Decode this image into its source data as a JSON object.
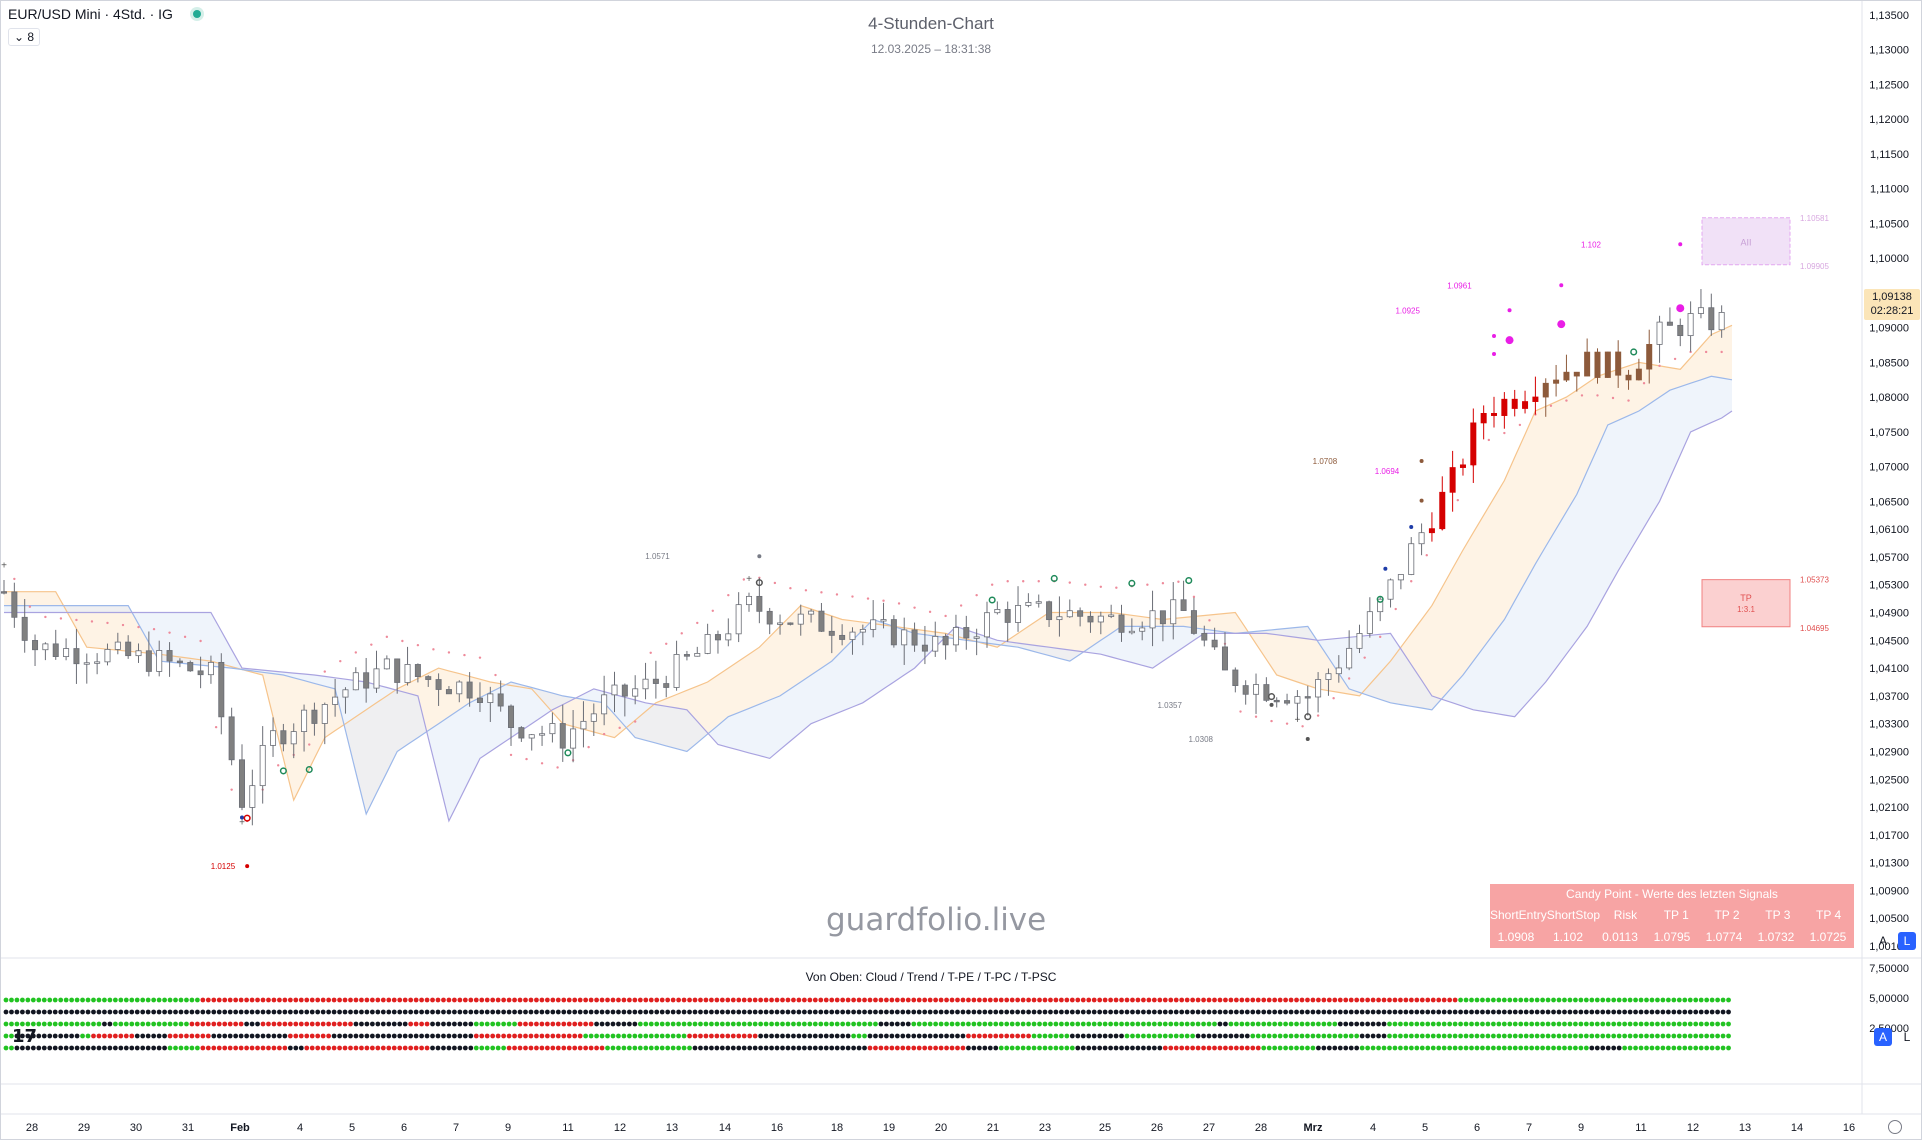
{
  "header": {
    "symbol": "EUR/USD Mini · 4Std. · IG",
    "indicator_count": "8",
    "title": "4-Stunden-Chart",
    "datetime": "12.03.2025 – 18:31:38"
  },
  "price_tag": {
    "price": "1,09138",
    "countdown": "02:28:21"
  },
  "watermark": "guardfolio.live",
  "lower_pane_title": "Von Oben: Cloud / Trend / T-PE / T-PC / T-PSC",
  "buttons": {
    "a": "A",
    "l": "L"
  },
  "signal_table": {
    "title": "Candy Point - Werte des letzten Signals",
    "headers": [
      "ShortEntry",
      "ShortStop",
      "Risk",
      "TP 1",
      "TP 2",
      "TP 3",
      "TP 4"
    ],
    "values": [
      "1.0908",
      "1.102",
      "0.0113",
      "1.0795",
      "1.0774",
      "1.0732",
      "1.0725"
    ]
  },
  "colors": {
    "up": "#ffffff",
    "down": "#808080",
    "red_candle": "#d50000",
    "brown_candle": "#8d5a3b",
    "magenta": "#e91ee6",
    "green_dot": "#22c322",
    "red_dot": "#e02020",
    "black_dot": "#131722"
  },
  "chart_data": {
    "type": "candlestick",
    "y_axis_ticks": [
      "1,13500",
      "1,13000",
      "1,12500",
      "1,12000",
      "1,11500",
      "1,11000",
      "1,10500",
      "1,10000",
      "1,09500",
      "1,09000",
      "1,08500",
      "1,08000",
      "1,07500",
      "1,07000",
      "1,06500",
      "1,06100",
      "1,05700",
      "1,05300",
      "1,04900",
      "1,04500",
      "1,04100",
      "1,03700",
      "1,03300",
      "1,02900",
      "1,02500",
      "1,02100",
      "1,01700",
      "1,01300",
      "1,00900",
      "1,00500",
      "1,00100"
    ],
    "lower_axis_ticks": [
      "7,50000",
      "5,00000",
      "2,50000"
    ],
    "x_axis_ticks": [
      "28",
      "29",
      "30",
      "31",
      "Feb",
      "4",
      "5",
      "6",
      "7",
      "9",
      "11",
      "12",
      "13",
      "14",
      "16",
      "18",
      "19",
      "20",
      "21",
      "23",
      "25",
      "26",
      "27",
      "28",
      "Mrz",
      "4",
      "5",
      "6",
      "7",
      "9",
      "11",
      "12",
      "13",
      "14",
      "16"
    ],
    "ylim": [
      0.998,
      1.137
    ],
    "x_range": [
      0,
      334
    ],
    "level_labels": [
      {
        "text": "1.0125",
        "value": 1.0125,
        "x": 47,
        "color": "#d50000"
      },
      {
        "text": "1.0571",
        "value": 1.0571,
        "x": 131,
        "color": "#787b86"
      },
      {
        "text": "1.0357",
        "value": 1.0357,
        "x": 230,
        "color": "#787b86"
      },
      {
        "text": "1.0308",
        "value": 1.0308,
        "x": 236,
        "color": "#787b86"
      },
      {
        "text": "1.0708",
        "value": 1.0708,
        "x": 260,
        "color": "#8d5a3b"
      },
      {
        "text": "1.0694",
        "value": 1.0694,
        "x": 272,
        "color": "#e91ee6"
      },
      {
        "text": "1.0925",
        "value": 1.0925,
        "x": 276,
        "color": "#e91ee6"
      },
      {
        "text": "1.0961",
        "value": 1.0961,
        "x": 286,
        "color": "#e91ee6"
      },
      {
        "text": "1.102",
        "value": 1.102,
        "x": 311,
        "color": "#e91ee6"
      }
    ],
    "zones": [
      {
        "label": "AII",
        "top": 1.10581,
        "bottom": 1.09905,
        "top_text": "1.10581",
        "bottom_text": "1.09905",
        "fill": "#f1e1f7",
        "stroke": "#e3a8f0",
        "label_color": "#c8a0d6",
        "text_color": "#d8a8e0"
      },
      {
        "label": "TP",
        "sub": "1:3.1",
        "top": 1.05373,
        "bottom": 1.04695,
        "top_text": "1.05373",
        "bottom_text": "1.04695",
        "fill": "#fbd0d0",
        "stroke": "#f08080",
        "label_color": "#e05050",
        "text_color": "#e05050"
      }
    ],
    "markers": [
      {
        "x": 0,
        "value": 1.0558,
        "type": "plus",
        "color": "#555"
      },
      {
        "x": 46,
        "value": 1.0195,
        "type": "dot",
        "color": "#1e3ca8"
      },
      {
        "x": 47,
        "value": 1.0194,
        "type": "ring",
        "color": "#d50000"
      },
      {
        "x": 46,
        "value": 1.0188,
        "type": "plus",
        "color": "#555"
      },
      {
        "x": 47,
        "value": 1.0125,
        "type": "dot",
        "color": "#d50000"
      },
      {
        "x": 54,
        "value": 1.0262,
        "type": "ring",
        "color": "#1f8a5a"
      },
      {
        "x": 59,
        "value": 1.0264,
        "type": "ring",
        "color": "#1f8a5a"
      },
      {
        "x": 109,
        "value": 1.0288,
        "type": "ring",
        "color": "#1f8a5a"
      },
      {
        "x": 144,
        "value": 1.0538,
        "type": "plus",
        "color": "#555"
      },
      {
        "x": 146,
        "value": 1.0533,
        "type": "ring",
        "color": "#555"
      },
      {
        "x": 146,
        "value": 1.0571,
        "type": "dot",
        "color": "#787b86"
      },
      {
        "x": 191,
        "value": 1.0508,
        "type": "ring",
        "color": "#1f8a5a"
      },
      {
        "x": 203,
        "value": 1.0539,
        "type": "ring",
        "color": "#1f8a5a"
      },
      {
        "x": 218,
        "value": 1.0532,
        "type": "ring",
        "color": "#1f8a5a"
      },
      {
        "x": 229,
        "value": 1.0536,
        "type": "ring",
        "color": "#1f8a5a"
      },
      {
        "x": 245,
        "value": 1.0369,
        "type": "ring",
        "color": "#555"
      },
      {
        "x": 245,
        "value": 1.0357,
        "type": "dot",
        "color": "#555"
      },
      {
        "x": 250,
        "value": 1.0335,
        "type": "plus",
        "color": "#555"
      },
      {
        "x": 252,
        "value": 1.034,
        "type": "ring",
        "color": "#555"
      },
      {
        "x": 252,
        "value": 1.0308,
        "type": "dot",
        "color": "#555"
      },
      {
        "x": 266,
        "value": 1.0509,
        "type": "ring",
        "color": "#1f8a5a"
      },
      {
        "x": 267,
        "value": 1.0553,
        "type": "dot",
        "color": "#1e3ca8"
      },
      {
        "x": 272,
        "value": 1.0613,
        "type": "dot",
        "color": "#1e3ca8"
      },
      {
        "x": 274,
        "value": 1.0651,
        "type": "dot",
        "color": "#8d5a3b"
      },
      {
        "x": 274,
        "value": 1.0708,
        "type": "dot",
        "color": "#8d5a3b"
      },
      {
        "x": 288,
        "value": 1.0862,
        "type": "dot",
        "color": "#e91ee6"
      },
      {
        "x": 288,
        "value": 1.0888,
        "type": "dot",
        "color": "#e91ee6"
      },
      {
        "x": 291,
        "value": 1.0882,
        "type": "bigdot",
        "color": "#e91ee6"
      },
      {
        "x": 291,
        "value": 1.0925,
        "type": "dot",
        "color": "#e91ee6"
      },
      {
        "x": 301,
        "value": 1.0905,
        "type": "bigdot",
        "color": "#e91ee6"
      },
      {
        "x": 301,
        "value": 1.0961,
        "type": "dot",
        "color": "#e91ee6"
      },
      {
        "x": 315,
        "value": 1.0865,
        "type": "ring",
        "color": "#1f8a5a"
      },
      {
        "x": 324,
        "value": 1.0928,
        "type": "bigdot",
        "color": "#e91ee6"
      },
      {
        "x": 324,
        "value": 1.102,
        "type": "dot",
        "color": "#e91ee6"
      }
    ],
    "dot_rows": {
      "values": [
        "cloud",
        "trend",
        "T-PE",
        "T-PC",
        "T-PSC"
      ],
      "count": 316,
      "rows": [
        [
          [
            0,
            36,
            "g"
          ],
          [
            36,
            235,
            "r"
          ],
          [
            235,
            266,
            "r"
          ],
          [
            266,
            316,
            "g"
          ]
        ],
        [
          [
            0,
            160,
            "k"
          ],
          [
            160,
            316,
            "k"
          ]
        ],
        [
          [
            0,
            18,
            "g"
          ],
          [
            18,
            20,
            "k"
          ],
          [
            20,
            34,
            "g"
          ],
          [
            34,
            44,
            "r"
          ],
          [
            44,
            47,
            "k"
          ],
          [
            47,
            64,
            "r"
          ],
          [
            64,
            74,
            "k"
          ],
          [
            74,
            78,
            "r"
          ],
          [
            78,
            86,
            "k"
          ],
          [
            86,
            94,
            "g"
          ],
          [
            94,
            108,
            "r"
          ],
          [
            108,
            116,
            "k"
          ],
          [
            116,
            160,
            "g"
          ],
          [
            160,
            166,
            "k"
          ],
          [
            166,
            196,
            "g"
          ],
          [
            196,
            222,
            "g"
          ],
          [
            222,
            224,
            "k"
          ],
          [
            224,
            244,
            "g"
          ],
          [
            244,
            253,
            "k"
          ],
          [
            253,
            316,
            "g"
          ]
        ],
        [
          [
            0,
            2,
            "g"
          ],
          [
            2,
            14,
            "k"
          ],
          [
            14,
            16,
            "g"
          ],
          [
            16,
            24,
            "r"
          ],
          [
            24,
            30,
            "k"
          ],
          [
            30,
            38,
            "r"
          ],
          [
            38,
            52,
            "k"
          ],
          [
            52,
            60,
            "r"
          ],
          [
            60,
            86,
            "k"
          ],
          [
            86,
            106,
            "r"
          ],
          [
            106,
            125,
            "g"
          ],
          [
            125,
            138,
            "r"
          ],
          [
            138,
            155,
            "k"
          ],
          [
            155,
            158,
            "g"
          ],
          [
            158,
            176,
            "k"
          ],
          [
            176,
            188,
            "r"
          ],
          [
            188,
            195,
            "g"
          ],
          [
            195,
            205,
            "k"
          ],
          [
            205,
            218,
            "g"
          ],
          [
            218,
            228,
            "k"
          ],
          [
            228,
            248,
            "g"
          ],
          [
            248,
            253,
            "k"
          ],
          [
            253,
            274,
            "g"
          ],
          [
            274,
            316,
            "g"
          ]
        ],
        [
          [
            0,
            2,
            "g"
          ],
          [
            2,
            30,
            "k"
          ],
          [
            30,
            36,
            "g"
          ],
          [
            36,
            52,
            "r"
          ],
          [
            52,
            55,
            "k"
          ],
          [
            55,
            78,
            "r"
          ],
          [
            78,
            86,
            "k"
          ],
          [
            86,
            92,
            "g"
          ],
          [
            92,
            110,
            "r"
          ],
          [
            110,
            126,
            "g"
          ],
          [
            126,
            158,
            "k"
          ],
          [
            158,
            176,
            "r"
          ],
          [
            176,
            182,
            "k"
          ],
          [
            182,
            196,
            "g"
          ],
          [
            196,
            212,
            "k"
          ],
          [
            212,
            230,
            "r"
          ],
          [
            230,
            240,
            "g"
          ],
          [
            240,
            248,
            "k"
          ],
          [
            248,
            270,
            "g"
          ],
          [
            270,
            290,
            "g"
          ],
          [
            290,
            296,
            "k"
          ],
          [
            296,
            316,
            "g"
          ]
        ]
      ]
    }
  }
}
